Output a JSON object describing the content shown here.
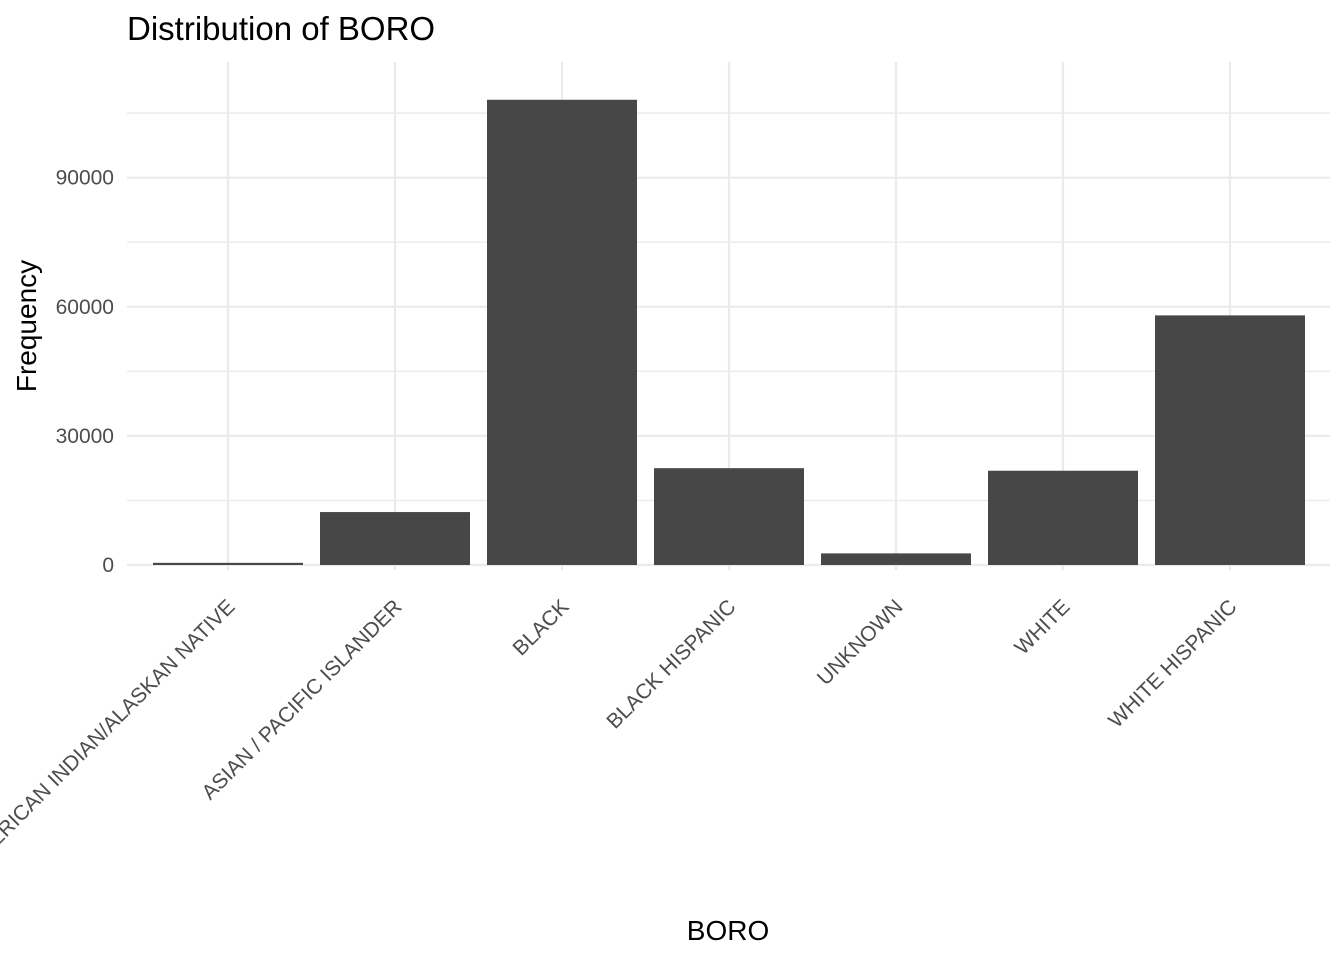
{
  "chart_data": {
    "type": "bar",
    "title": "Distribution of BORO",
    "xlabel": "BORO",
    "ylabel": "Frequency",
    "categories": [
      "AMERICAN INDIAN/ALASKAN NATIVE",
      "ASIAN / PACIFIC ISLANDER",
      "BLACK",
      "BLACK HISPANIC",
      "UNKNOWN",
      "WHITE",
      "WHITE HISPANIC"
    ],
    "values": [
      500,
      12300,
      108100,
      22500,
      2700,
      21900,
      58000
    ],
    "ylim": [
      0,
      111300
    ],
    "yticks": [
      0,
      30000,
      60000,
      90000
    ],
    "ytick_labels": [
      "0",
      "30000",
      "60000",
      "90000"
    ],
    "grid": true,
    "bar_color": "#474747"
  }
}
